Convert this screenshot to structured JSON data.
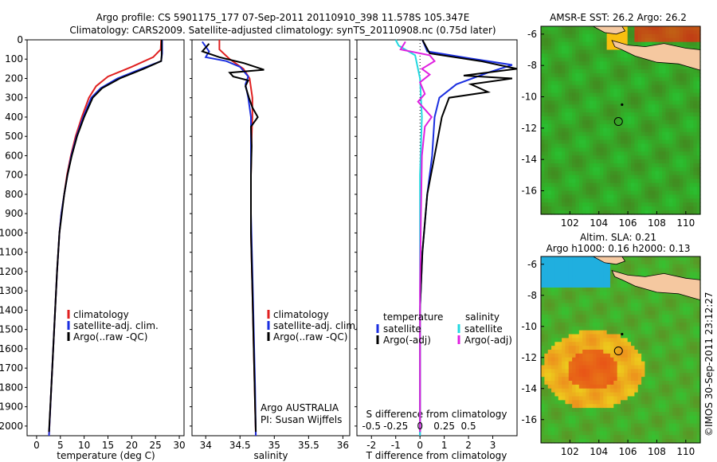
{
  "header": {
    "title_line1": "Argo profile: CS 5901175_177 07-Sep-2011 20110910_398 11.578S 105.347E",
    "title_line2": "Climatology: CARS2009. Satellite-adjusted climatology: synTS_20110908.nc (0.75d later)"
  },
  "credit": "©IMOS 30-Sep-2011 23:12:27",
  "colors": {
    "clim": "#e02020",
    "sat": "#1a2ee0",
    "argo": "#000000",
    "sal_sat": "#22d8e0",
    "sal_argo": "#e020e0"
  },
  "chart_data": [
    {
      "type": "line",
      "id": "temperature",
      "xlabel": "temperature (deg C)",
      "xlim": [
        -2,
        31
      ],
      "xticks": [
        0,
        5,
        10,
        15,
        20,
        25,
        30
      ],
      "ylim": [
        0,
        2050
      ],
      "yticks": [
        0,
        100,
        200,
        300,
        400,
        500,
        600,
        700,
        800,
        900,
        1000,
        1100,
        1200,
        1300,
        1400,
        1500,
        1600,
        1700,
        1800,
        1900,
        2000
      ],
      "legend": [
        "climatology",
        "satellite-adj. clim.",
        "Argo(..raw -QC)"
      ],
      "series": [
        {
          "name": "climatology",
          "color": "clim",
          "points": [
            [
              26.2,
              0
            ],
            [
              26.1,
              50
            ],
            [
              24.5,
              90
            ],
            [
              20,
              140
            ],
            [
              15,
              190
            ],
            [
              12.5,
              240
            ],
            [
              11,
              300
            ],
            [
              9.5,
              400
            ],
            [
              8.2,
              500
            ],
            [
              7.2,
              600
            ],
            [
              6.4,
              700
            ],
            [
              5.8,
              800
            ],
            [
              5.2,
              900
            ],
            [
              4.8,
              1000
            ],
            [
              4.3,
              1200
            ],
            [
              3.7,
              1500
            ],
            [
              3.1,
              1800
            ],
            [
              2.6,
              2050
            ]
          ]
        },
        {
          "name": "satellite-adj. clim.",
          "color": "sat",
          "points": [
            [
              26.4,
              0
            ],
            [
              26.4,
              70
            ],
            [
              26.2,
              110
            ],
            [
              22,
              150
            ],
            [
              17,
              200
            ],
            [
              13.5,
              250
            ],
            [
              11.5,
              300
            ],
            [
              9.8,
              400
            ],
            [
              8.4,
              500
            ],
            [
              7.3,
              600
            ],
            [
              6.5,
              700
            ],
            [
              5.8,
              800
            ],
            [
              5.2,
              900
            ],
            [
              4.8,
              1000
            ],
            [
              4.3,
              1200
            ],
            [
              3.7,
              1500
            ],
            [
              3.1,
              1800
            ],
            [
              2.6,
              2050
            ]
          ]
        },
        {
          "name": "Argo(..raw -QC)",
          "color": "argo",
          "points": [
            [
              26.3,
              0
            ],
            [
              26.3,
              80
            ],
            [
              26.2,
              110
            ],
            [
              22.5,
              150
            ],
            [
              17.5,
              200
            ],
            [
              13.8,
              250
            ],
            [
              11.8,
              300
            ],
            [
              10,
              400
            ],
            [
              8.5,
              500
            ],
            [
              7.4,
              600
            ],
            [
              6.5,
              700
            ],
            [
              5.8,
              800
            ],
            [
              5.3,
              900
            ],
            [
              4.8,
              1000
            ],
            [
              4.3,
              1200
            ],
            [
              3.7,
              1500
            ],
            [
              3.1,
              1800
            ],
            [
              2.6,
              2030
            ]
          ]
        }
      ]
    },
    {
      "type": "line",
      "id": "salinity",
      "xlabel": "salinity",
      "xlim": [
        33.8,
        36.1
      ],
      "xticks": [
        34,
        34.5,
        35,
        35.5,
        36
      ],
      "ylim": [
        0,
        2050
      ],
      "legend": [
        "climatology",
        "satellite-adj. clim.",
        "Argo(..raw -QC)"
      ],
      "annotation": [
        "Argo AUSTRALIA",
        "PI: Susan Wijffels"
      ],
      "series": [
        {
          "name": "climatology",
          "color": "clim",
          "points": [
            [
              34.2,
              0
            ],
            [
              34.2,
              50
            ],
            [
              34.35,
              100
            ],
            [
              34.55,
              150
            ],
            [
              34.64,
              200
            ],
            [
              34.68,
              300
            ],
            [
              34.68,
              400
            ],
            [
              34.67,
              500
            ],
            [
              34.66,
              700
            ],
            [
              34.66,
              1000
            ],
            [
              34.68,
              1300
            ],
            [
              34.7,
              1600
            ],
            [
              34.72,
              1900
            ],
            [
              34.73,
              2050
            ]
          ]
        },
        {
          "name": "satellite-adj. clim.",
          "color": "sat",
          "points": [
            [
              33.95,
              10
            ],
            [
              34.05,
              60
            ],
            [
              34.0,
              90
            ],
            [
              34.3,
              110
            ],
            [
              34.5,
              140
            ],
            [
              34.62,
              190
            ],
            [
              34.58,
              230
            ],
            [
              34.62,
              300
            ],
            [
              34.66,
              400
            ],
            [
              34.66,
              600
            ],
            [
              34.66,
              900
            ],
            [
              34.68,
              1200
            ],
            [
              34.7,
              1500
            ],
            [
              34.72,
              1800
            ],
            [
              34.73,
              2050
            ]
          ]
        },
        {
          "name": "Argo(..raw -QC)",
          "color": "argo",
          "points": [
            [
              34.05,
              20
            ],
            [
              33.95,
              60
            ],
            [
              34.2,
              90
            ],
            [
              34.55,
              120
            ],
            [
              34.85,
              155
            ],
            [
              34.35,
              170
            ],
            [
              34.4,
              190
            ],
            [
              34.62,
              210
            ],
            [
              34.58,
              240
            ],
            [
              34.63,
              300
            ],
            [
              34.68,
              350
            ],
            [
              34.76,
              400
            ],
            [
              34.66,
              450
            ],
            [
              34.67,
              550
            ],
            [
              34.66,
              700
            ],
            [
              34.66,
              1000
            ],
            [
              34.68,
              1300
            ],
            [
              34.7,
              1600
            ],
            [
              34.72,
              1900
            ],
            [
              34.73,
              2030
            ]
          ]
        }
      ]
    },
    {
      "type": "line",
      "id": "difference",
      "xlabel": "T difference from climatology",
      "xlabel_top": "S difference from climatology",
      "xlim": [
        -2.6,
        4
      ],
      "xticks": [
        -2,
        -1,
        0,
        1,
        2,
        3
      ],
      "s_ticks": [
        -0.5,
        -0.25,
        0,
        0.25,
        0.5
      ],
      "ylim": [
        0,
        2050
      ],
      "legend_left_title": "temperature",
      "legend_right_title": "salinity",
      "legend": [
        "satellite",
        "Argo(-adj)",
        "satellite",
        "Argo(-adj)"
      ],
      "series": [
        {
          "name": "temperature satellite",
          "color": "sat",
          "points": [
            [
              0.1,
              0
            ],
            [
              0.3,
              60
            ],
            [
              2.0,
              95
            ],
            [
              3.8,
              130
            ],
            [
              2.8,
              170
            ],
            [
              1.5,
              230
            ],
            [
              0.8,
              300
            ],
            [
              0.6,
              400
            ],
            [
              0.5,
              600
            ],
            [
              0.3,
              800
            ],
            [
              0.1,
              1100
            ],
            [
              0.0,
              1400
            ],
            [
              0.0,
              2050
            ]
          ]
        },
        {
          "name": "temperature Argo(-adj)",
          "color": "argo",
          "points": [
            [
              0.1,
              0
            ],
            [
              0.4,
              70
            ],
            [
              2.5,
              110
            ],
            [
              4.0,
              150
            ],
            [
              1.8,
              185
            ],
            [
              3.8,
              200
            ],
            [
              2.1,
              230
            ],
            [
              2.8,
              270
            ],
            [
              1.2,
              300
            ],
            [
              0.9,
              400
            ],
            [
              0.6,
              600
            ],
            [
              0.3,
              800
            ],
            [
              0.1,
              1100
            ],
            [
              0.0,
              1400
            ],
            [
              0.0,
              2030
            ]
          ]
        },
        {
          "name": "salinity satellite",
          "color": "sal_sat",
          "points": [
            [
              -0.25,
              0
            ],
            [
              -0.22,
              30
            ],
            [
              -0.05,
              80
            ],
            [
              0.0,
              200
            ],
            [
              0.02,
              400
            ],
            [
              0.0,
              700
            ],
            [
              0.0,
              1100
            ],
            [
              0.0,
              1500
            ],
            [
              0.0,
              2050
            ]
          ]
        },
        {
          "name": "salinity Argo(-adj)",
          "color": "sal_argo",
          "points": [
            [
              -0.15,
              10
            ],
            [
              -0.2,
              50
            ],
            [
              0.1,
              80
            ],
            [
              0.15,
              110
            ],
            [
              0.02,
              150
            ],
            [
              0.1,
              180
            ],
            [
              0.0,
              220
            ],
            [
              0.05,
              280
            ],
            [
              -0.02,
              320
            ],
            [
              0.05,
              360
            ],
            [
              0.12,
              400
            ],
            [
              0.05,
              450
            ],
            [
              0.02,
              600
            ],
            [
              0.01,
              900
            ],
            [
              0.0,
              1300
            ],
            [
              0.0,
              1700
            ],
            [
              0.0,
              2030
            ]
          ]
        }
      ]
    },
    {
      "type": "heatmap",
      "id": "sst_map",
      "title": "AMSR-E SST: 26.2 Argo: 26.2",
      "xlim": [
        100,
        111
      ],
      "ylim": [
        -17.5,
        -5.5
      ],
      "xticks": [
        102,
        104,
        106,
        108,
        110
      ],
      "yticks": [
        -6,
        -8,
        -10,
        -12,
        -14,
        -16
      ],
      "float_lon": 105.35,
      "float_lat": -11.578,
      "dot_lon": 105.6,
      "dot_lat": -10.5
    },
    {
      "type": "heatmap",
      "id": "sla_map",
      "title": "Altim. SLA: 0.21",
      "subtitle": "Argo h1000: 0.16 h2000: 0.13",
      "xlim": [
        100,
        111
      ],
      "ylim": [
        -17.5,
        -5.5
      ],
      "xticks": [
        102,
        104,
        106,
        108,
        110
      ],
      "yticks": [
        -6,
        -8,
        -10,
        -12,
        -14,
        -16
      ],
      "float_lon": 105.35,
      "float_lat": -11.578,
      "dot_lon": 105.6,
      "dot_lat": -10.5
    }
  ]
}
